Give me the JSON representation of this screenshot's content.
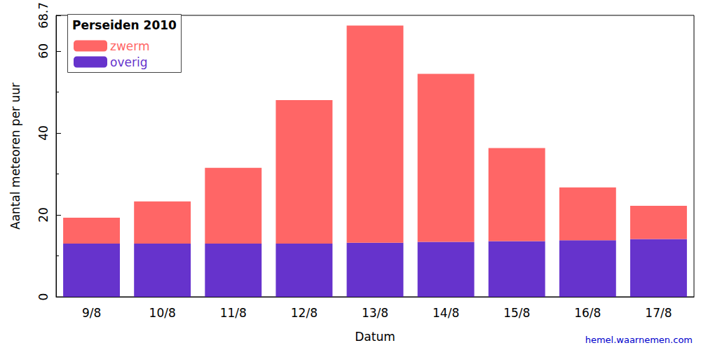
{
  "chart_data": {
    "type": "bar",
    "title": "Perseiden 2010",
    "x_label": "Datum",
    "y_label": "Aantal meteoren per uur",
    "source": "hemel.waarnemen.com",
    "categories": [
      "9/8",
      "10/8",
      "11/8",
      "12/8",
      "13/8",
      "14/8",
      "15/8",
      "16/8",
      "17/8"
    ],
    "series": [
      {
        "name": "zwerm",
        "color": "#ff6666",
        "values": [
          6.3,
          10.3,
          18.5,
          35.0,
          53.0,
          41.0,
          22.7,
          12.9,
          8.1
        ]
      },
      {
        "name": "overig",
        "color": "#6633cc",
        "values": [
          13.0,
          13.0,
          13.0,
          13.0,
          13.2,
          13.4,
          13.6,
          13.8,
          14.1
        ]
      }
    ],
    "stacked": true,
    "legend": "upper left",
    "ylim": [
      0,
      68.7
    ],
    "yticks": [
      0,
      20,
      40,
      60
    ],
    "grid": false
  }
}
